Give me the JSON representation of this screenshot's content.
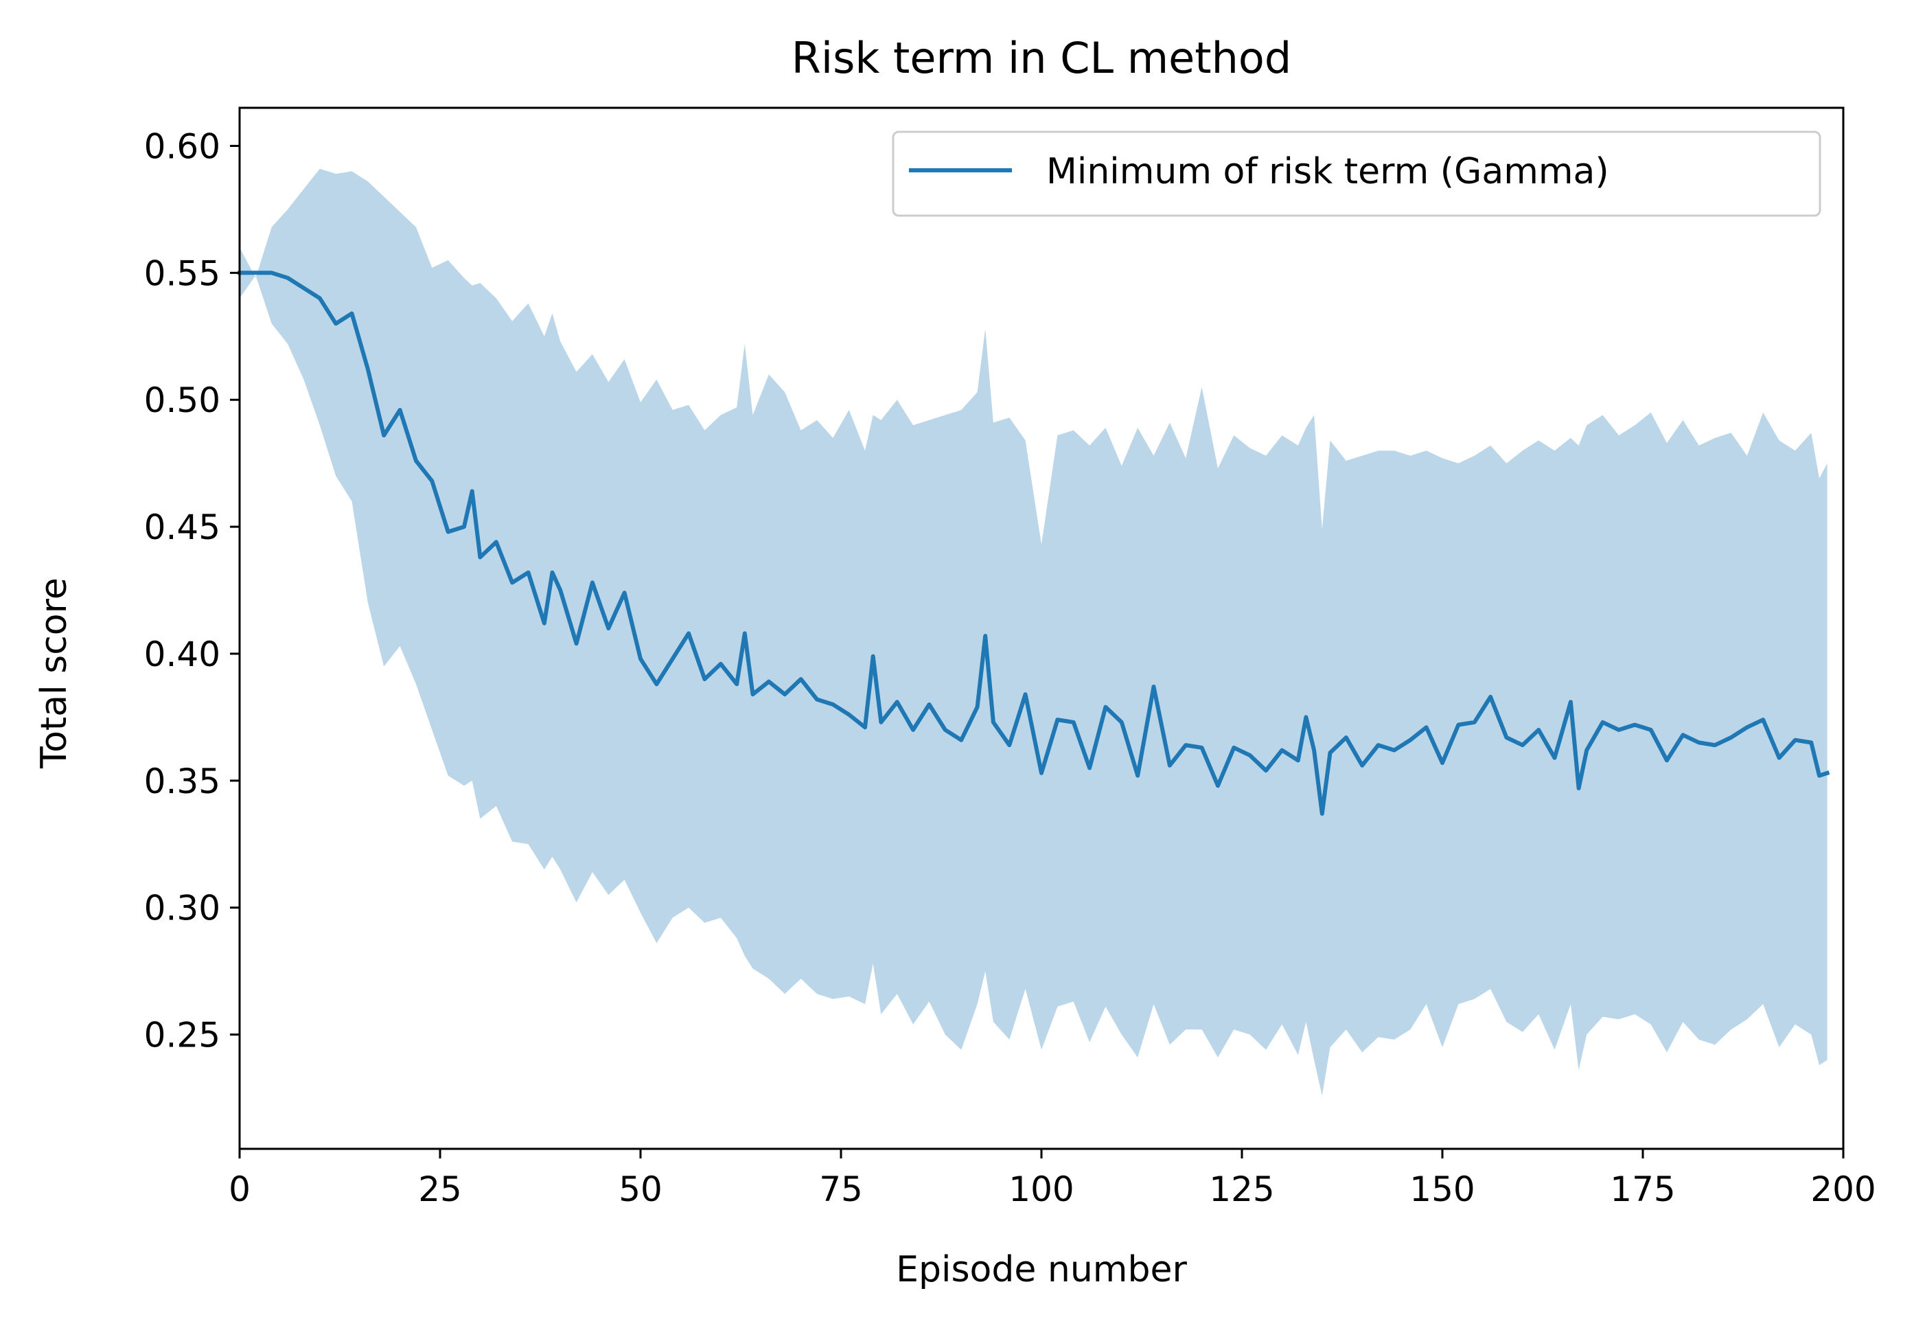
{
  "chart_data": {
    "type": "line",
    "title": "Risk term in CL method",
    "xlabel": "Episode number",
    "ylabel": "Total score",
    "xlim": [
      0,
      200
    ],
    "ylim": [
      0.205,
      0.615
    ],
    "xticks": [
      0,
      25,
      50,
      75,
      100,
      125,
      150,
      175,
      200
    ],
    "xtick_labels": [
      "0",
      "25",
      "50",
      "75",
      "100",
      "125",
      "150",
      "175",
      "200"
    ],
    "yticks": [
      0.25,
      0.3,
      0.35,
      0.4,
      0.45,
      0.5,
      0.55,
      0.6
    ],
    "ytick_labels": [
      "0.25",
      "0.30",
      "0.35",
      "0.40",
      "0.45",
      "0.50",
      "0.55",
      "0.60"
    ],
    "grid": false,
    "legend_position": "top-right",
    "colors": {
      "line": "#1f77b4",
      "band": "#bbd6e8",
      "axes": "#000000",
      "legend_border": "#cccccc"
    },
    "series": [
      {
        "name": "Minimum of risk term (Gamma)",
        "x": [
          0,
          2,
          4,
          6,
          8,
          10,
          12,
          14,
          16,
          18,
          20,
          22,
          24,
          26,
          28,
          29,
          30,
          32,
          34,
          36,
          38,
          39,
          40,
          42,
          44,
          46,
          48,
          50,
          52,
          54,
          56,
          58,
          60,
          62,
          63,
          64,
          66,
          68,
          70,
          72,
          74,
          76,
          78,
          79,
          80,
          82,
          84,
          86,
          88,
          90,
          92,
          93,
          94,
          96,
          98,
          100,
          102,
          104,
          106,
          108,
          110,
          112,
          114,
          116,
          118,
          120,
          122,
          124,
          126,
          128,
          130,
          132,
          133,
          134,
          135,
          136,
          138,
          140,
          142,
          144,
          146,
          148,
          150,
          152,
          154,
          156,
          158,
          160,
          162,
          164,
          166,
          167,
          168,
          170,
          172,
          174,
          176,
          178,
          180,
          182,
          184,
          186,
          188,
          190,
          192,
          194,
          196,
          197,
          198
        ],
        "y": [
          0.55,
          0.55,
          0.55,
          0.548,
          0.544,
          0.54,
          0.53,
          0.534,
          0.512,
          0.486,
          0.496,
          0.476,
          0.468,
          0.448,
          0.45,
          0.464,
          0.438,
          0.444,
          0.428,
          0.432,
          0.412,
          0.432,
          0.425,
          0.404,
          0.428,
          0.41,
          0.424,
          0.398,
          0.388,
          0.398,
          0.408,
          0.39,
          0.396,
          0.388,
          0.408,
          0.384,
          0.389,
          0.384,
          0.39,
          0.382,
          0.38,
          0.376,
          0.371,
          0.399,
          0.373,
          0.381,
          0.37,
          0.38,
          0.37,
          0.366,
          0.379,
          0.407,
          0.373,
          0.364,
          0.384,
          0.353,
          0.374,
          0.373,
          0.355,
          0.379,
          0.373,
          0.352,
          0.387,
          0.356,
          0.364,
          0.363,
          0.348,
          0.363,
          0.36,
          0.354,
          0.362,
          0.358,
          0.375,
          0.362,
          0.337,
          0.361,
          0.367,
          0.356,
          0.364,
          0.362,
          0.366,
          0.371,
          0.357,
          0.372,
          0.373,
          0.383,
          0.367,
          0.364,
          0.37,
          0.359,
          0.381,
          0.347,
          0.362,
          0.373,
          0.37,
          0.372,
          0.37,
          0.358,
          0.368,
          0.365,
          0.364,
          0.367,
          0.371,
          0.374,
          0.359,
          0.366,
          0.365,
          0.352,
          0.353
        ],
        "band_upper": [
          0.56,
          0.548,
          0.568,
          0.575,
          0.583,
          0.591,
          0.589,
          0.59,
          0.586,
          0.58,
          0.574,
          0.568,
          0.552,
          0.555,
          0.548,
          0.545,
          0.546,
          0.54,
          0.531,
          0.538,
          0.525,
          0.534,
          0.523,
          0.511,
          0.518,
          0.507,
          0.516,
          0.499,
          0.508,
          0.496,
          0.498,
          0.488,
          0.494,
          0.497,
          0.522,
          0.494,
          0.51,
          0.503,
          0.488,
          0.492,
          0.485,
          0.496,
          0.48,
          0.494,
          0.492,
          0.5,
          0.49,
          0.492,
          0.494,
          0.496,
          0.503,
          0.528,
          0.491,
          0.493,
          0.484,
          0.443,
          0.486,
          0.488,
          0.482,
          0.489,
          0.474,
          0.489,
          0.478,
          0.491,
          0.477,
          0.505,
          0.473,
          0.486,
          0.481,
          0.478,
          0.486,
          0.482,
          0.489,
          0.494,
          0.449,
          0.484,
          0.476,
          0.478,
          0.48,
          0.48,
          0.478,
          0.48,
          0.477,
          0.475,
          0.478,
          0.482,
          0.475,
          0.48,
          0.484,
          0.48,
          0.485,
          0.482,
          0.49,
          0.494,
          0.486,
          0.49,
          0.495,
          0.483,
          0.492,
          0.482,
          0.485,
          0.487,
          0.478,
          0.495,
          0.484,
          0.48,
          0.487,
          0.469,
          0.475
        ],
        "band_lower": [
          0.54,
          0.549,
          0.53,
          0.522,
          0.508,
          0.49,
          0.47,
          0.46,
          0.42,
          0.395,
          0.403,
          0.388,
          0.37,
          0.352,
          0.348,
          0.35,
          0.335,
          0.34,
          0.326,
          0.325,
          0.315,
          0.32,
          0.315,
          0.302,
          0.314,
          0.305,
          0.311,
          0.298,
          0.286,
          0.296,
          0.3,
          0.294,
          0.296,
          0.288,
          0.281,
          0.276,
          0.272,
          0.266,
          0.272,
          0.266,
          0.264,
          0.265,
          0.262,
          0.278,
          0.258,
          0.266,
          0.254,
          0.263,
          0.25,
          0.244,
          0.262,
          0.275,
          0.255,
          0.248,
          0.268,
          0.244,
          0.261,
          0.263,
          0.247,
          0.261,
          0.25,
          0.241,
          0.262,
          0.246,
          0.252,
          0.252,
          0.241,
          0.252,
          0.25,
          0.244,
          0.254,
          0.242,
          0.255,
          0.24,
          0.226,
          0.245,
          0.252,
          0.243,
          0.249,
          0.248,
          0.252,
          0.262,
          0.245,
          0.262,
          0.264,
          0.268,
          0.255,
          0.251,
          0.258,
          0.244,
          0.262,
          0.236,
          0.25,
          0.257,
          0.256,
          0.258,
          0.254,
          0.243,
          0.255,
          0.248,
          0.246,
          0.252,
          0.256,
          0.262,
          0.245,
          0.254,
          0.25,
          0.238,
          0.24
        ]
      }
    ]
  }
}
